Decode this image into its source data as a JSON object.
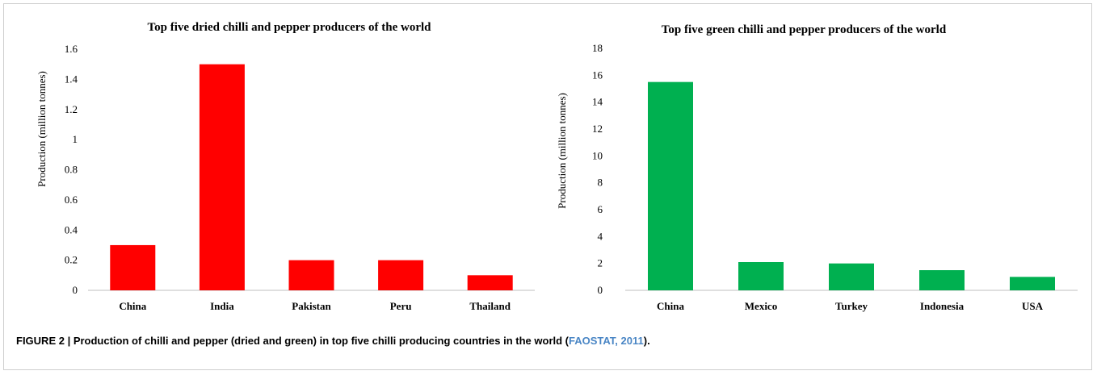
{
  "chart_data": [
    {
      "type": "bar",
      "title": "Top five dried chilli and pepper producers of the world",
      "ylabel": "Production (million tonnes)",
      "xlabel": "",
      "categories": [
        "China",
        "India",
        "Pakistan",
        "Peru",
        "Thailand"
      ],
      "values": [
        0.3,
        1.5,
        0.2,
        0.2,
        0.1
      ],
      "ylim": [
        0,
        1.6
      ],
      "yticks": [
        "0",
        "0.2",
        "0.4",
        "0.6",
        "0.8",
        "1",
        "1.2",
        "1.4",
        "1.6"
      ],
      "bar_color": "#ff0000",
      "grid": false
    },
    {
      "type": "bar",
      "title": "Top five green chilli and pepper producers of the world",
      "ylabel": "Production (million tonnes)",
      "xlabel": "",
      "categories": [
        "China",
        "Mexico",
        "Turkey",
        "Indonesia",
        "USA"
      ],
      "values": [
        15.5,
        2.1,
        2.0,
        1.5,
        1.0
      ],
      "ylim": [
        0,
        18
      ],
      "yticks": [
        "0",
        "2",
        "4",
        "6",
        "8",
        "10",
        "12",
        "14",
        "16",
        "18"
      ],
      "bar_color": "#00b050",
      "grid": false
    }
  ],
  "caption": {
    "prefix": "FIGURE 2 | Production of chilli and pepper (dried and green) in top five chilli producing countries in the world (",
    "citation": "FAOSTAT, 2011",
    "suffix": ")."
  }
}
